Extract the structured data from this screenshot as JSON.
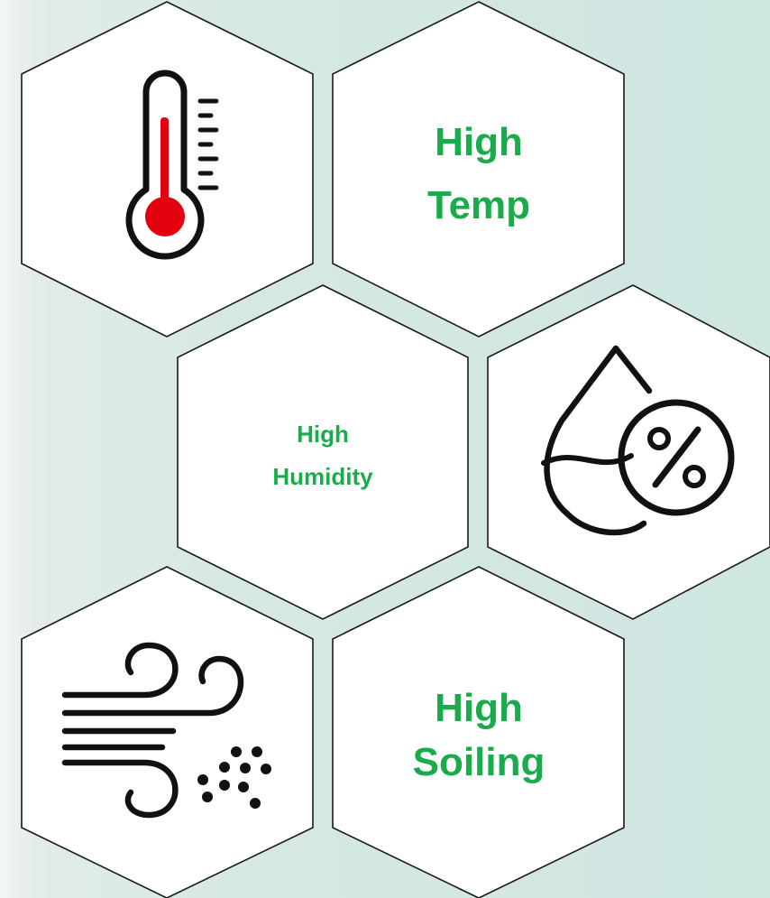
{
  "tiles": {
    "temp_label_line1": "High",
    "temp_label_line2": "Temp",
    "humidity_label_line1": "High",
    "humidity_label_line2": "Humidity",
    "soiling_label_line1": "High",
    "soiling_label_line2": "Soiling"
  },
  "icons": {
    "temperature": "thermometer-icon",
    "humidity": "humidity-drop-percent-icon",
    "soiling": "wind-dust-icon"
  },
  "colors": {
    "label_green": "#1aab4b",
    "thermometer_red": "#e3000f",
    "background": "#d6e8e4",
    "tile_fill": "#ffffff",
    "outline": "#1a1a1a"
  }
}
